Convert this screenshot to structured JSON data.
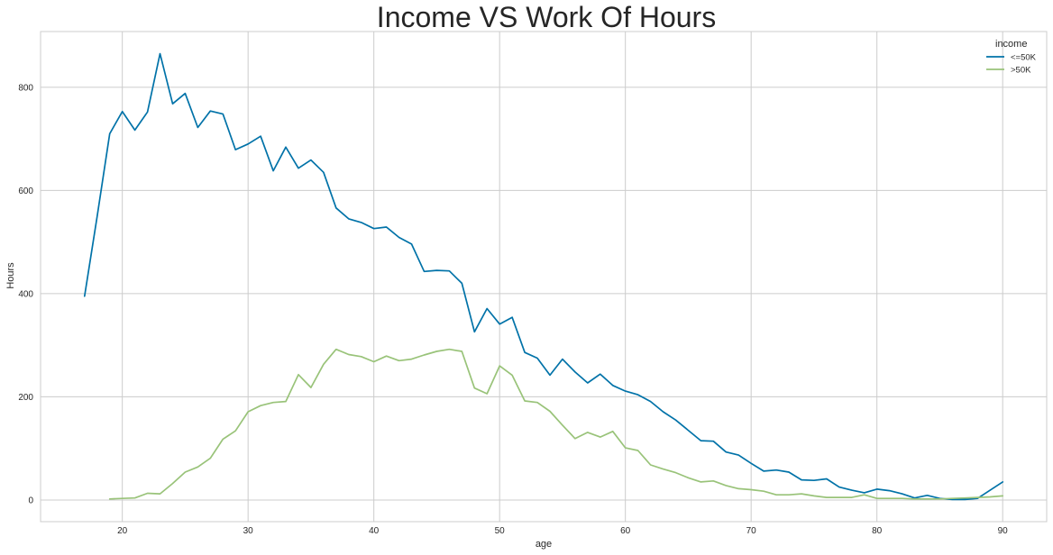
{
  "chart_data": {
    "type": "line",
    "title": "Income VS Work Of Hours",
    "xlabel": "age",
    "ylabel": "Hours",
    "xlim": [
      13.5,
      93.5
    ],
    "ylim": [
      -42,
      908
    ],
    "xticks": [
      20,
      30,
      40,
      50,
      60,
      70,
      80,
      90
    ],
    "yticks": [
      0,
      200,
      400,
      600,
      800
    ],
    "grid": true,
    "legend": {
      "title": "income",
      "placement": "top-right"
    },
    "series": [
      {
        "name": "<=50K",
        "color": "#0072a8",
        "x": [
          17,
          18,
          19,
          20,
          21,
          22,
          23,
          24,
          25,
          26,
          27,
          28,
          29,
          30,
          31,
          32,
          33,
          34,
          35,
          36,
          37,
          38,
          39,
          40,
          41,
          42,
          43,
          44,
          45,
          46,
          47,
          48,
          49,
          50,
          51,
          52,
          53,
          54,
          55,
          56,
          57,
          58,
          59,
          60,
          61,
          62,
          63,
          64,
          65,
          66,
          67,
          68,
          69,
          70,
          71,
          72,
          73,
          74,
          75,
          76,
          77,
          78,
          79,
          80,
          81,
          82,
          83,
          84,
          85,
          86,
          87,
          88,
          90
        ],
        "y": [
          395,
          550,
          710,
          753,
          717,
          752,
          865,
          768,
          788,
          722,
          754,
          748,
          679,
          690,
          705,
          638,
          684,
          643,
          659,
          635,
          566,
          545,
          538,
          526,
          529,
          509,
          496,
          443,
          445,
          444,
          420,
          326,
          371,
          341,
          354,
          286,
          275,
          242,
          273,
          248,
          227,
          244,
          222,
          211,
          204,
          191,
          171,
          155,
          135,
          115,
          114,
          93,
          87,
          71,
          56,
          58,
          54,
          39,
          38,
          41,
          25,
          19,
          14,
          21,
          18,
          12,
          4,
          9,
          3,
          1,
          1,
          3,
          35
        ]
      },
      {
        "name": ">50K",
        "color": "#99c379",
        "x": [
          19,
          20,
          21,
          22,
          23,
          24,
          25,
          26,
          27,
          28,
          29,
          30,
          31,
          32,
          33,
          34,
          35,
          36,
          37,
          38,
          39,
          40,
          41,
          42,
          43,
          44,
          45,
          46,
          47,
          48,
          49,
          50,
          51,
          52,
          53,
          54,
          55,
          56,
          57,
          58,
          59,
          60,
          61,
          62,
          63,
          64,
          65,
          66,
          67,
          68,
          69,
          70,
          71,
          72,
          73,
          74,
          75,
          76,
          77,
          78,
          79,
          80,
          81,
          82,
          83,
          84,
          85,
          86,
          87,
          88,
          89,
          90
        ],
        "y": [
          2,
          3,
          4,
          13,
          12,
          32,
          54,
          64,
          81,
          118,
          134,
          171,
          183,
          189,
          191,
          243,
          218,
          263,
          292,
          282,
          278,
          268,
          279,
          270,
          273,
          281,
          288,
          292,
          288,
          217,
          206,
          260,
          242,
          192,
          189,
          172,
          145,
          119,
          131,
          122,
          133,
          101,
          96,
          68,
          60,
          53,
          43,
          35,
          37,
          28,
          22,
          20,
          17,
          10,
          10,
          12,
          8,
          5,
          5,
          5,
          10,
          3,
          3,
          3,
          2,
          2,
          2,
          3,
          4,
          5,
          6,
          8
        ]
      }
    ]
  }
}
